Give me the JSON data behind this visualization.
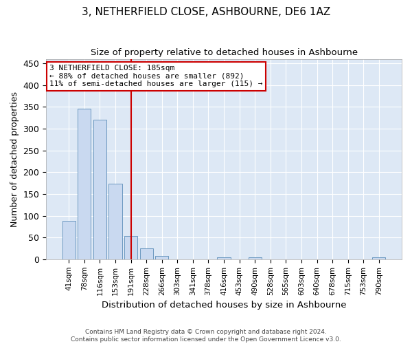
{
  "title": "3, NETHERFIELD CLOSE, ASHBOURNE, DE6 1AZ",
  "subtitle": "Size of property relative to detached houses in Ashbourne",
  "xlabel": "Distribution of detached houses by size in Ashbourne",
  "ylabel": "Number of detached properties",
  "bar_labels": [
    "41sqm",
    "78sqm",
    "116sqm",
    "153sqm",
    "191sqm",
    "228sqm",
    "266sqm",
    "303sqm",
    "341sqm",
    "378sqm",
    "416sqm",
    "453sqm",
    "490sqm",
    "528sqm",
    "565sqm",
    "603sqm",
    "640sqm",
    "678sqm",
    "715sqm",
    "753sqm",
    "790sqm"
  ],
  "bar_values": [
    88,
    345,
    321,
    174,
    53,
    25,
    8,
    0,
    0,
    0,
    5,
    0,
    5,
    0,
    0,
    0,
    0,
    0,
    0,
    0,
    4
  ],
  "bar_color": "#c9d9f0",
  "bar_edge_color": "#5b8db8",
  "vline_x": 4,
  "vline_color": "#cc0000",
  "annotation_text": "3 NETHERFIELD CLOSE: 185sqm\n← 88% of detached houses are smaller (892)\n11% of semi-detached houses are larger (115) →",
  "annotation_box_color": "#ffffff",
  "annotation_box_edge": "#cc0000",
  "ylim": [
    0,
    460
  ],
  "yticks": [
    0,
    50,
    100,
    150,
    200,
    250,
    300,
    350,
    400,
    450
  ],
  "footer_line1": "Contains HM Land Registry data © Crown copyright and database right 2024.",
  "footer_line2": "Contains public sector information licensed under the Open Government Licence v3.0.",
  "bg_color": "#ffffff",
  "plot_bg_color": "#dde8f5"
}
